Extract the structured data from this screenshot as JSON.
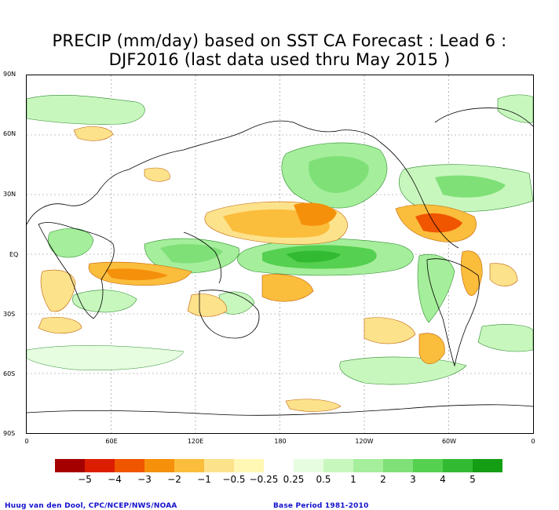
{
  "title_line1": "PRECIP (mm/day) based on SST CA Forecast : Lead 6 :",
  "title_line2": "DJF2016 (last data used thru May 2015 )",
  "lat_labels": [
    "90N",
    "60N",
    "30N",
    "EQ",
    "30S",
    "60S",
    "90S"
  ],
  "lon_labels": [
    "0",
    "60E",
    "120E",
    "180",
    "120W",
    "60W",
    "0"
  ],
  "legend": {
    "colors": [
      "#a50000",
      "#dc1e00",
      "#f05500",
      "#f5900a",
      "#fbbd3c",
      "#fde28c",
      "#fff7b4",
      "#ffffff",
      "#e6fde0",
      "#c8f7be",
      "#a5ee9b",
      "#7fe078",
      "#55d050",
      "#32bb32",
      "#149e14"
    ],
    "labels": [
      "−5",
      "−4",
      "−3",
      "−2",
      "−1",
      "−0.5",
      "−0.25",
      "0.25",
      "0.5",
      "1",
      "2",
      "3",
      "4",
      "5"
    ]
  },
  "credit_left": "Huug van den Dool, CPC/NCEP/NWS/NOAA",
  "credit_right": "Base Period 1981-2010"
}
